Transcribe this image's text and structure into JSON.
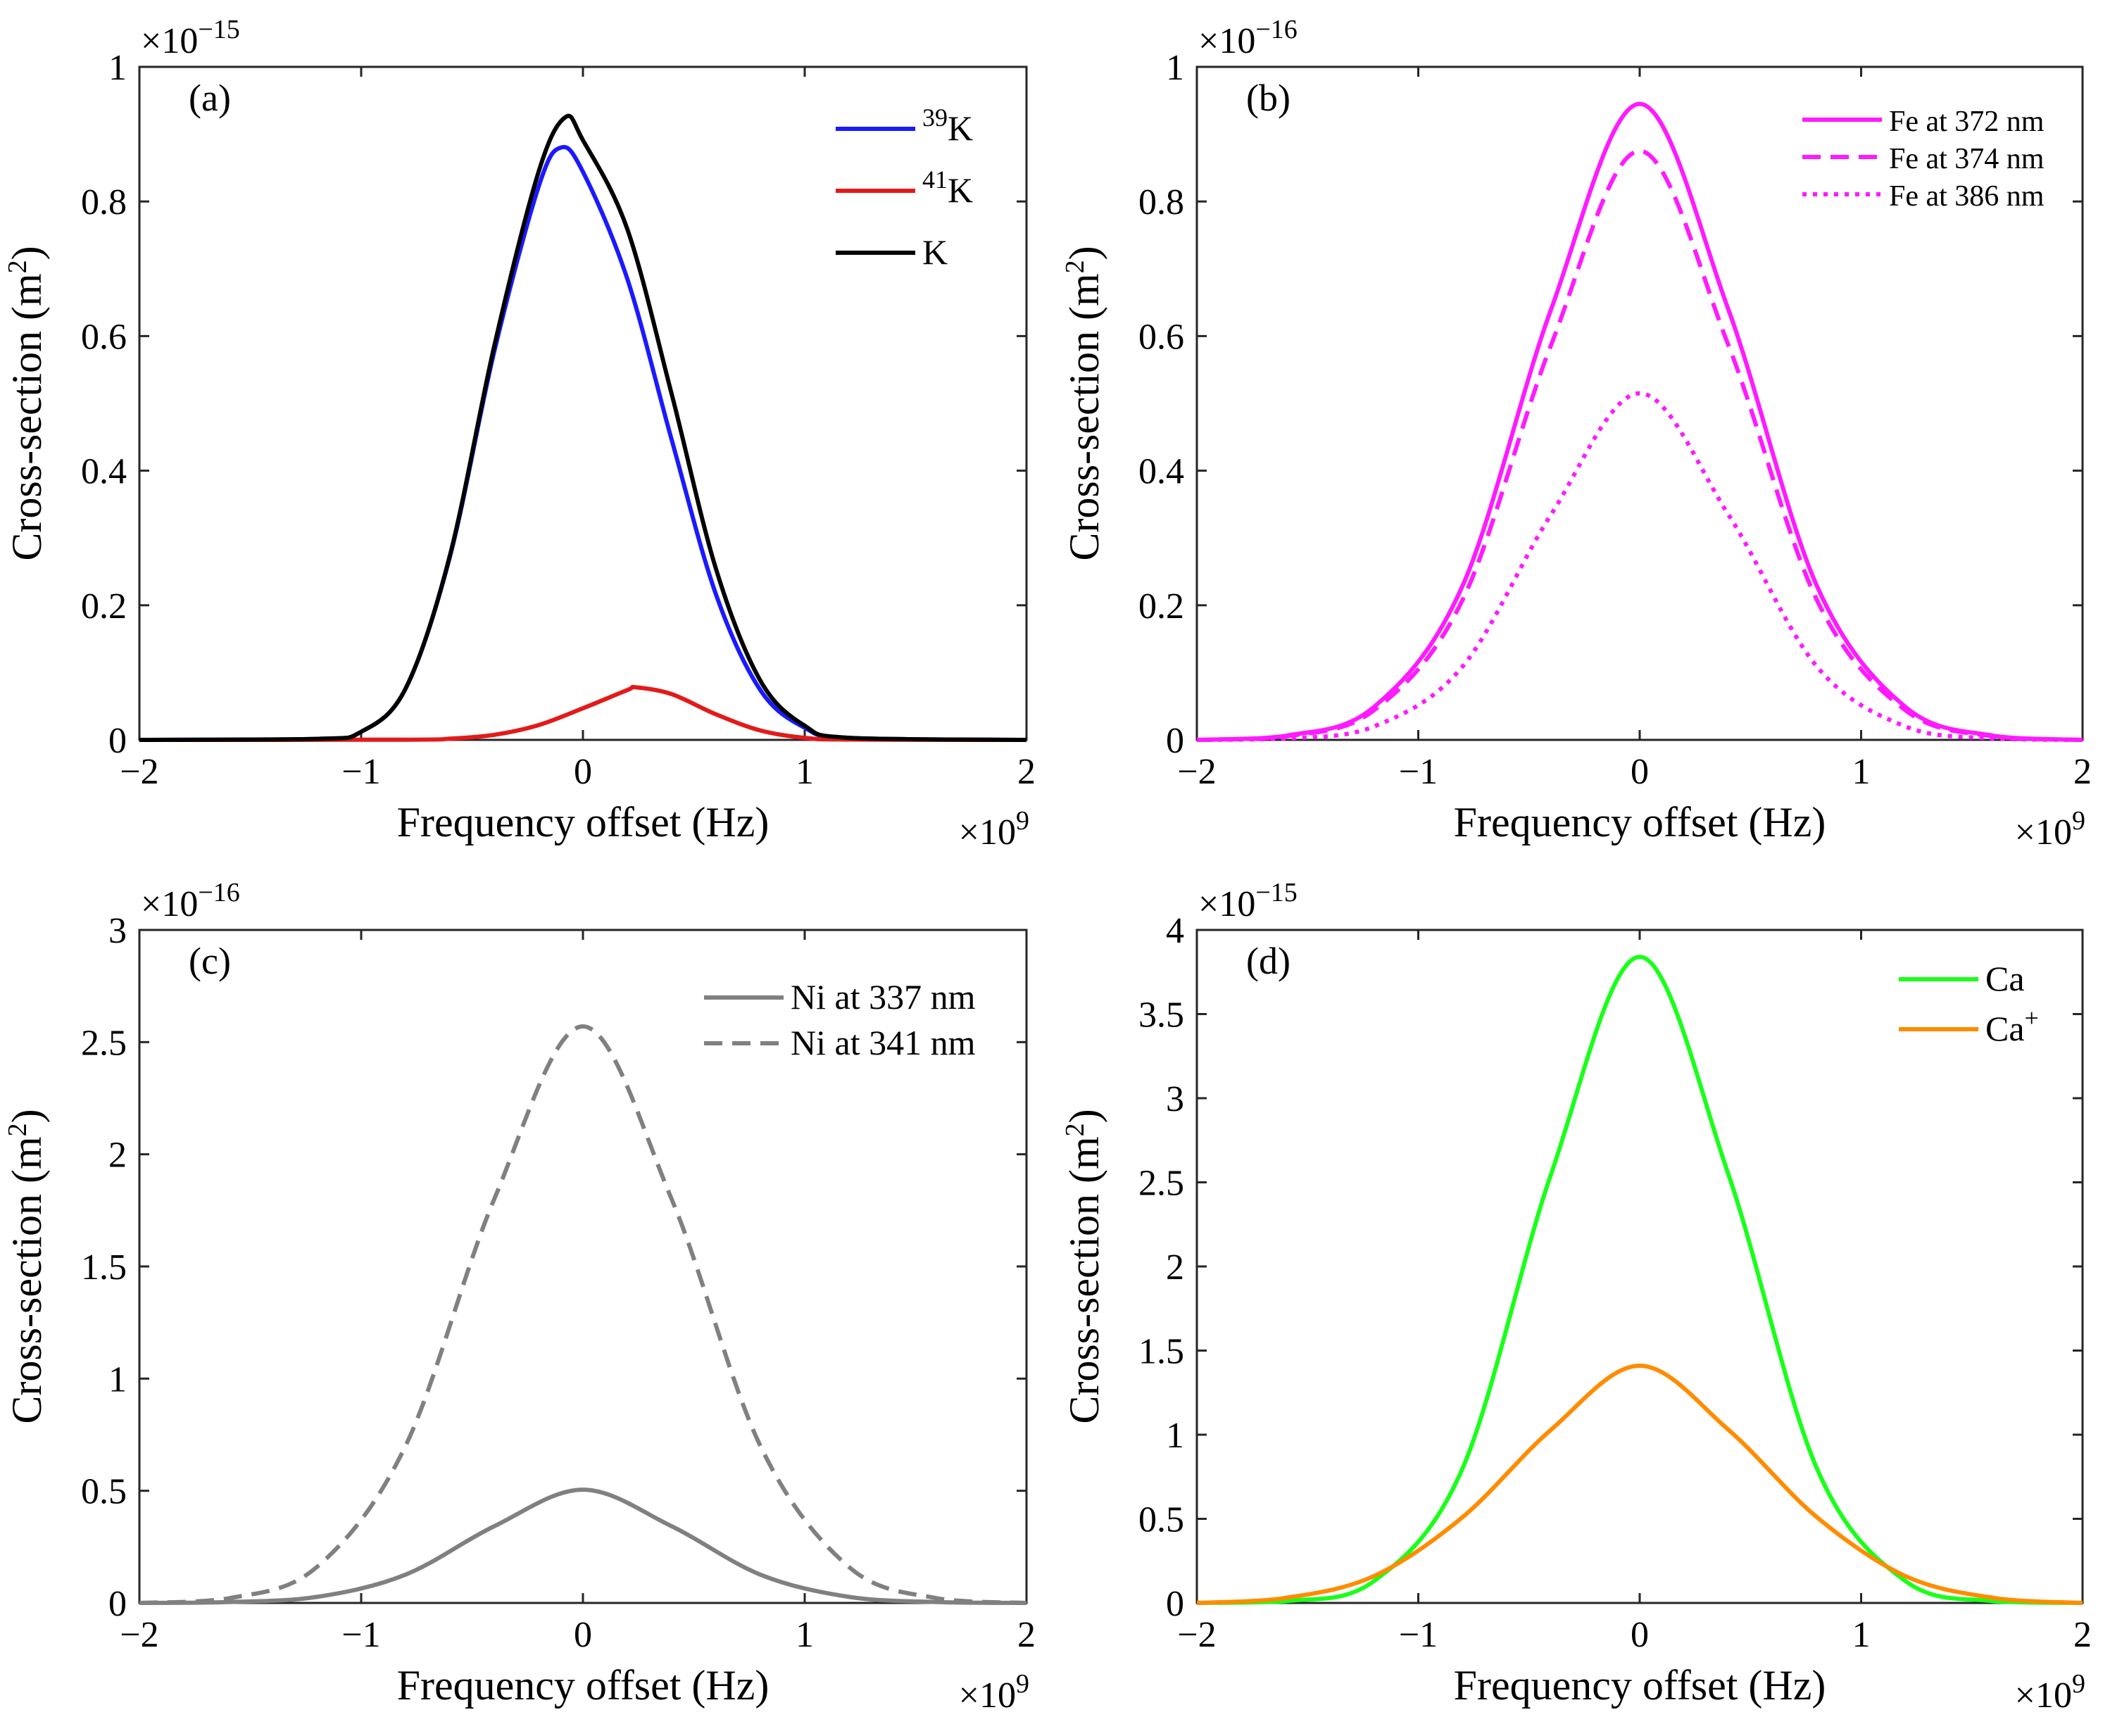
{
  "chart_data": [
    {
      "type": "line",
      "panel_label": "(a)",
      "xlabel": "Frequency offset (Hz)",
      "ylabel": "Cross-section (m2)",
      "x_exponent_label": "×10",
      "x_exponent": "9",
      "y_exponent_label": "×10",
      "y_exponent": "−15",
      "xlim": [
        -2,
        2
      ],
      "ylim": [
        0,
        1
      ],
      "x_ticks": [
        -2,
        -1,
        0,
        1,
        2
      ],
      "x_tick_labels": [
        "−2",
        "−1",
        "0",
        "1",
        "2"
      ],
      "y_ticks": [
        0,
        0.2,
        0.4,
        0.6,
        0.8,
        1
      ],
      "y_tick_labels": [
        "0",
        "0.2",
        "0.4",
        "0.6",
        "0.8",
        "1"
      ],
      "grid": false,
      "legend_position": "top-right",
      "series": [
        {
          "name": "39K",
          "name_base": "K",
          "name_sup": "39",
          "name_sup_position": "pre",
          "color": "#1a1aff",
          "dash": "solid",
          "x": [
            -2,
            -1.2,
            -1.0,
            -0.8,
            -0.6,
            -0.4,
            -0.2,
            -0.1,
            0,
            0.2,
            0.4,
            0.6,
            0.8,
            1.0,
            1.2,
            2
          ],
          "y": [
            0,
            0.0015,
            0.012,
            0.076,
            0.272,
            0.577,
            0.822,
            0.88,
            0.844,
            0.685,
            0.446,
            0.216,
            0.074,
            0.018,
            0.003,
            0
          ]
        },
        {
          "name": "41K",
          "name_base": "K",
          "name_sup": "41",
          "name_sup_position": "pre",
          "color": "#e31a1a",
          "dash": "solid",
          "x": [
            -2,
            -0.8,
            -0.6,
            -0.4,
            -0.2,
            0,
            0.2,
            0.24,
            0.4,
            0.6,
            0.8,
            1.0,
            1.2,
            2
          ],
          "y": [
            0,
            0.0003,
            0.0018,
            0.0075,
            0.022,
            0.047,
            0.074,
            0.078,
            0.068,
            0.038,
            0.014,
            0.003,
            0.0005,
            0
          ]
        },
        {
          "name": "K",
          "name_base": "K",
          "name_sup": "",
          "name_sup_position": "",
          "color": "#000000",
          "dash": "solid",
          "x": [
            -2,
            -1.2,
            -1.0,
            -0.8,
            -0.6,
            -0.4,
            -0.2,
            -0.08,
            0,
            0.2,
            0.4,
            0.6,
            0.8,
            1.0,
            1.2,
            2
          ],
          "y": [
            0,
            0.0015,
            0.012,
            0.076,
            0.274,
            0.585,
            0.844,
            0.925,
            0.891,
            0.759,
            0.514,
            0.254,
            0.088,
            0.021,
            0.003,
            0
          ]
        }
      ]
    },
    {
      "type": "line",
      "panel_label": "(b)",
      "xlabel": "Frequency offset (Hz)",
      "ylabel": "Cross-section (m2)",
      "x_exponent_label": "×10",
      "x_exponent": "9",
      "y_exponent_label": "×10",
      "y_exponent": "−16",
      "xlim": [
        -2,
        2
      ],
      "ylim": [
        0,
        1
      ],
      "x_ticks": [
        -2,
        -1,
        0,
        1,
        2
      ],
      "x_tick_labels": [
        "−2",
        "−1",
        "0",
        "1",
        "2"
      ],
      "y_ticks": [
        0,
        0.2,
        0.4,
        0.6,
        0.8,
        1
      ],
      "y_tick_labels": [
        "0",
        "0.2",
        "0.4",
        "0.6",
        "0.8",
        "1"
      ],
      "grid": false,
      "legend_position": "top-right",
      "series": [
        {
          "name": "Fe at 372 nm",
          "color": "#ff1aff",
          "dash": "solid",
          "x": [
            -2,
            -1.6,
            -1.2,
            -0.8,
            -0.4,
            0,
            0.4,
            0.8,
            1.2,
            1.6,
            2
          ],
          "y": [
            0,
            0.006,
            0.049,
            0.229,
            0.64,
            0.945,
            0.64,
            0.229,
            0.049,
            0.006,
            0
          ]
        },
        {
          "name": "Fe at 374 nm",
          "color": "#ff1aff",
          "dash": "dashed",
          "x": [
            -2,
            -1.6,
            -1.2,
            -0.8,
            -0.4,
            0,
            0.4,
            0.8,
            1.2,
            1.6,
            2
          ],
          "y": [
            0,
            0.005,
            0.044,
            0.208,
            0.587,
            0.875,
            0.587,
            0.208,
            0.044,
            0.005,
            0
          ]
        },
        {
          "name": "Fe at 386 nm",
          "color": "#ff1aff",
          "dash": "dotted",
          "x": [
            -2,
            -1.6,
            -1.2,
            -0.8,
            -0.4,
            0,
            0.4,
            0.8,
            1.2,
            1.6,
            2
          ],
          "y": [
            0,
            0.002,
            0.02,
            0.109,
            0.335,
            0.515,
            0.335,
            0.109,
            0.02,
            0.002,
            0
          ]
        }
      ]
    },
    {
      "type": "line",
      "panel_label": "(c)",
      "xlabel": "Frequency offset (Hz)",
      "ylabel": "Cross-section (m2)",
      "x_exponent_label": "×10",
      "x_exponent": "9",
      "y_exponent_label": "×10",
      "y_exponent": "−16",
      "xlim": [
        -2,
        2
      ],
      "ylim": [
        0,
        3
      ],
      "x_ticks": [
        -2,
        -1,
        0,
        1,
        2
      ],
      "x_tick_labels": [
        "−2",
        "−1",
        "0",
        "1",
        "2"
      ],
      "y_ticks": [
        0,
        0.5,
        1,
        1.5,
        2,
        2.5,
        3
      ],
      "y_tick_labels": [
        "0",
        "0.5",
        "1",
        "1.5",
        "2",
        "2.5",
        "3"
      ],
      "grid": false,
      "legend_position": "top-right",
      "series": [
        {
          "name": "Ni at 337 nm",
          "color": "#808080",
          "dash": "solid",
          "x": [
            -2,
            -1.6,
            -1.2,
            -0.8,
            -0.4,
            0,
            0.4,
            0.8,
            1.2,
            1.6,
            2
          ],
          "y": [
            0,
            0.004,
            0.027,
            0.126,
            0.342,
            0.505,
            0.342,
            0.126,
            0.027,
            0.004,
            0
          ]
        },
        {
          "name": "Ni at 341 nm",
          "color": "#808080",
          "dash": "dashed",
          "x": [
            -2,
            -1.6,
            -1.2,
            -0.8,
            -0.4,
            0,
            0.4,
            0.8,
            1.2,
            1.6,
            2
          ],
          "y": [
            0,
            0.02,
            0.16,
            0.7,
            1.8,
            2.57,
            1.8,
            0.7,
            0.16,
            0.02,
            0
          ]
        }
      ]
    },
    {
      "type": "line",
      "panel_label": "(d)",
      "xlabel": "Frequency offset (Hz)",
      "ylabel": "Cross-section (m2)",
      "x_exponent_label": "×10",
      "x_exponent": "9",
      "y_exponent_label": "×10",
      "y_exponent": "−15",
      "xlim": [
        -2,
        2
      ],
      "ylim": [
        0,
        4
      ],
      "x_ticks": [
        -2,
        -1,
        0,
        1,
        2
      ],
      "x_tick_labels": [
        "−2",
        "−1",
        "0",
        "1",
        "2"
      ],
      "y_ticks": [
        0,
        0.5,
        1,
        1.5,
        2,
        2.5,
        3,
        3.5,
        4
      ],
      "y_tick_labels": [
        "0",
        "0.5",
        "1",
        "1.5",
        "2",
        "2.5",
        "3",
        "3.5",
        "4"
      ],
      "grid": false,
      "legend_position": "top-right",
      "series": [
        {
          "name": "Ca",
          "name_base": "Ca",
          "name_sup": "",
          "name_sup_position": "",
          "color": "#1aff1a",
          "dash": "solid",
          "x": [
            -2,
            -1.6,
            -1.2,
            -0.8,
            -0.4,
            0,
            0.4,
            0.8,
            1.2,
            1.6,
            2
          ],
          "y": [
            0,
            0.01,
            0.13,
            0.8,
            2.55,
            3.84,
            2.55,
            0.8,
            0.13,
            0.01,
            0
          ]
        },
        {
          "name": "Ca+",
          "name_base": "Ca",
          "name_sup": "+",
          "name_sup_position": "post",
          "color": "#ff8c00",
          "dash": "solid",
          "x": [
            -2,
            -1.6,
            -1.2,
            -0.8,
            -0.4,
            0,
            0.4,
            0.8,
            1.2,
            1.6,
            2
          ],
          "y": [
            0,
            0.03,
            0.16,
            0.51,
            1.03,
            1.41,
            1.03,
            0.51,
            0.16,
            0.03,
            0
          ]
        }
      ]
    }
  ]
}
